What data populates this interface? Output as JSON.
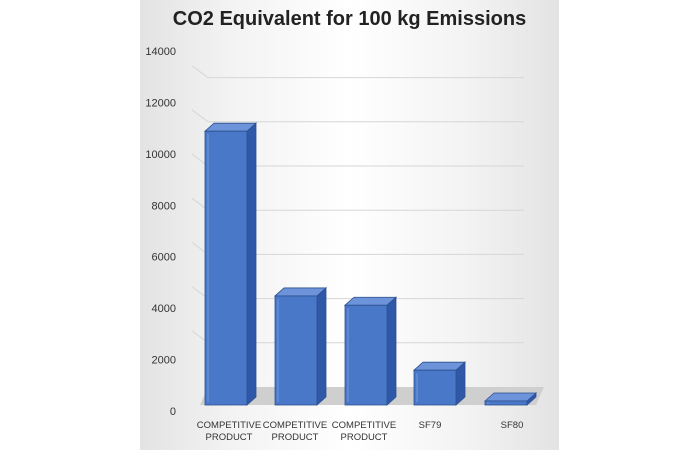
{
  "chart_data": {
    "type": "bar",
    "title": "CO2 Equivalent for 100 kg Emissions",
    "categories": [
      [
        "COMPETITIVE",
        "PRODUCT"
      ],
      [
        "COMPETITIVE",
        "PRODUCT"
      ],
      [
        "COMPETITIVE",
        "PRODUCT"
      ],
      [
        "SF79"
      ],
      [
        "SF80"
      ]
    ],
    "values": [
      11800,
      4700,
      4300,
      1500,
      10
    ],
    "ylim": [
      0,
      14000
    ],
    "yticks": [
      "0",
      "2000",
      "4000",
      "6000",
      "8000",
      "10000",
      "12000",
      "14000"
    ],
    "grid": true,
    "legend": "none",
    "style": "3d-column",
    "colors": {
      "bar_front": "#4a78c8",
      "bar_side": "#2f58a8",
      "bar_top": "#6d94da",
      "bar_edge": "#2c4f8f",
      "floor": "#cfcfcf"
    }
  }
}
